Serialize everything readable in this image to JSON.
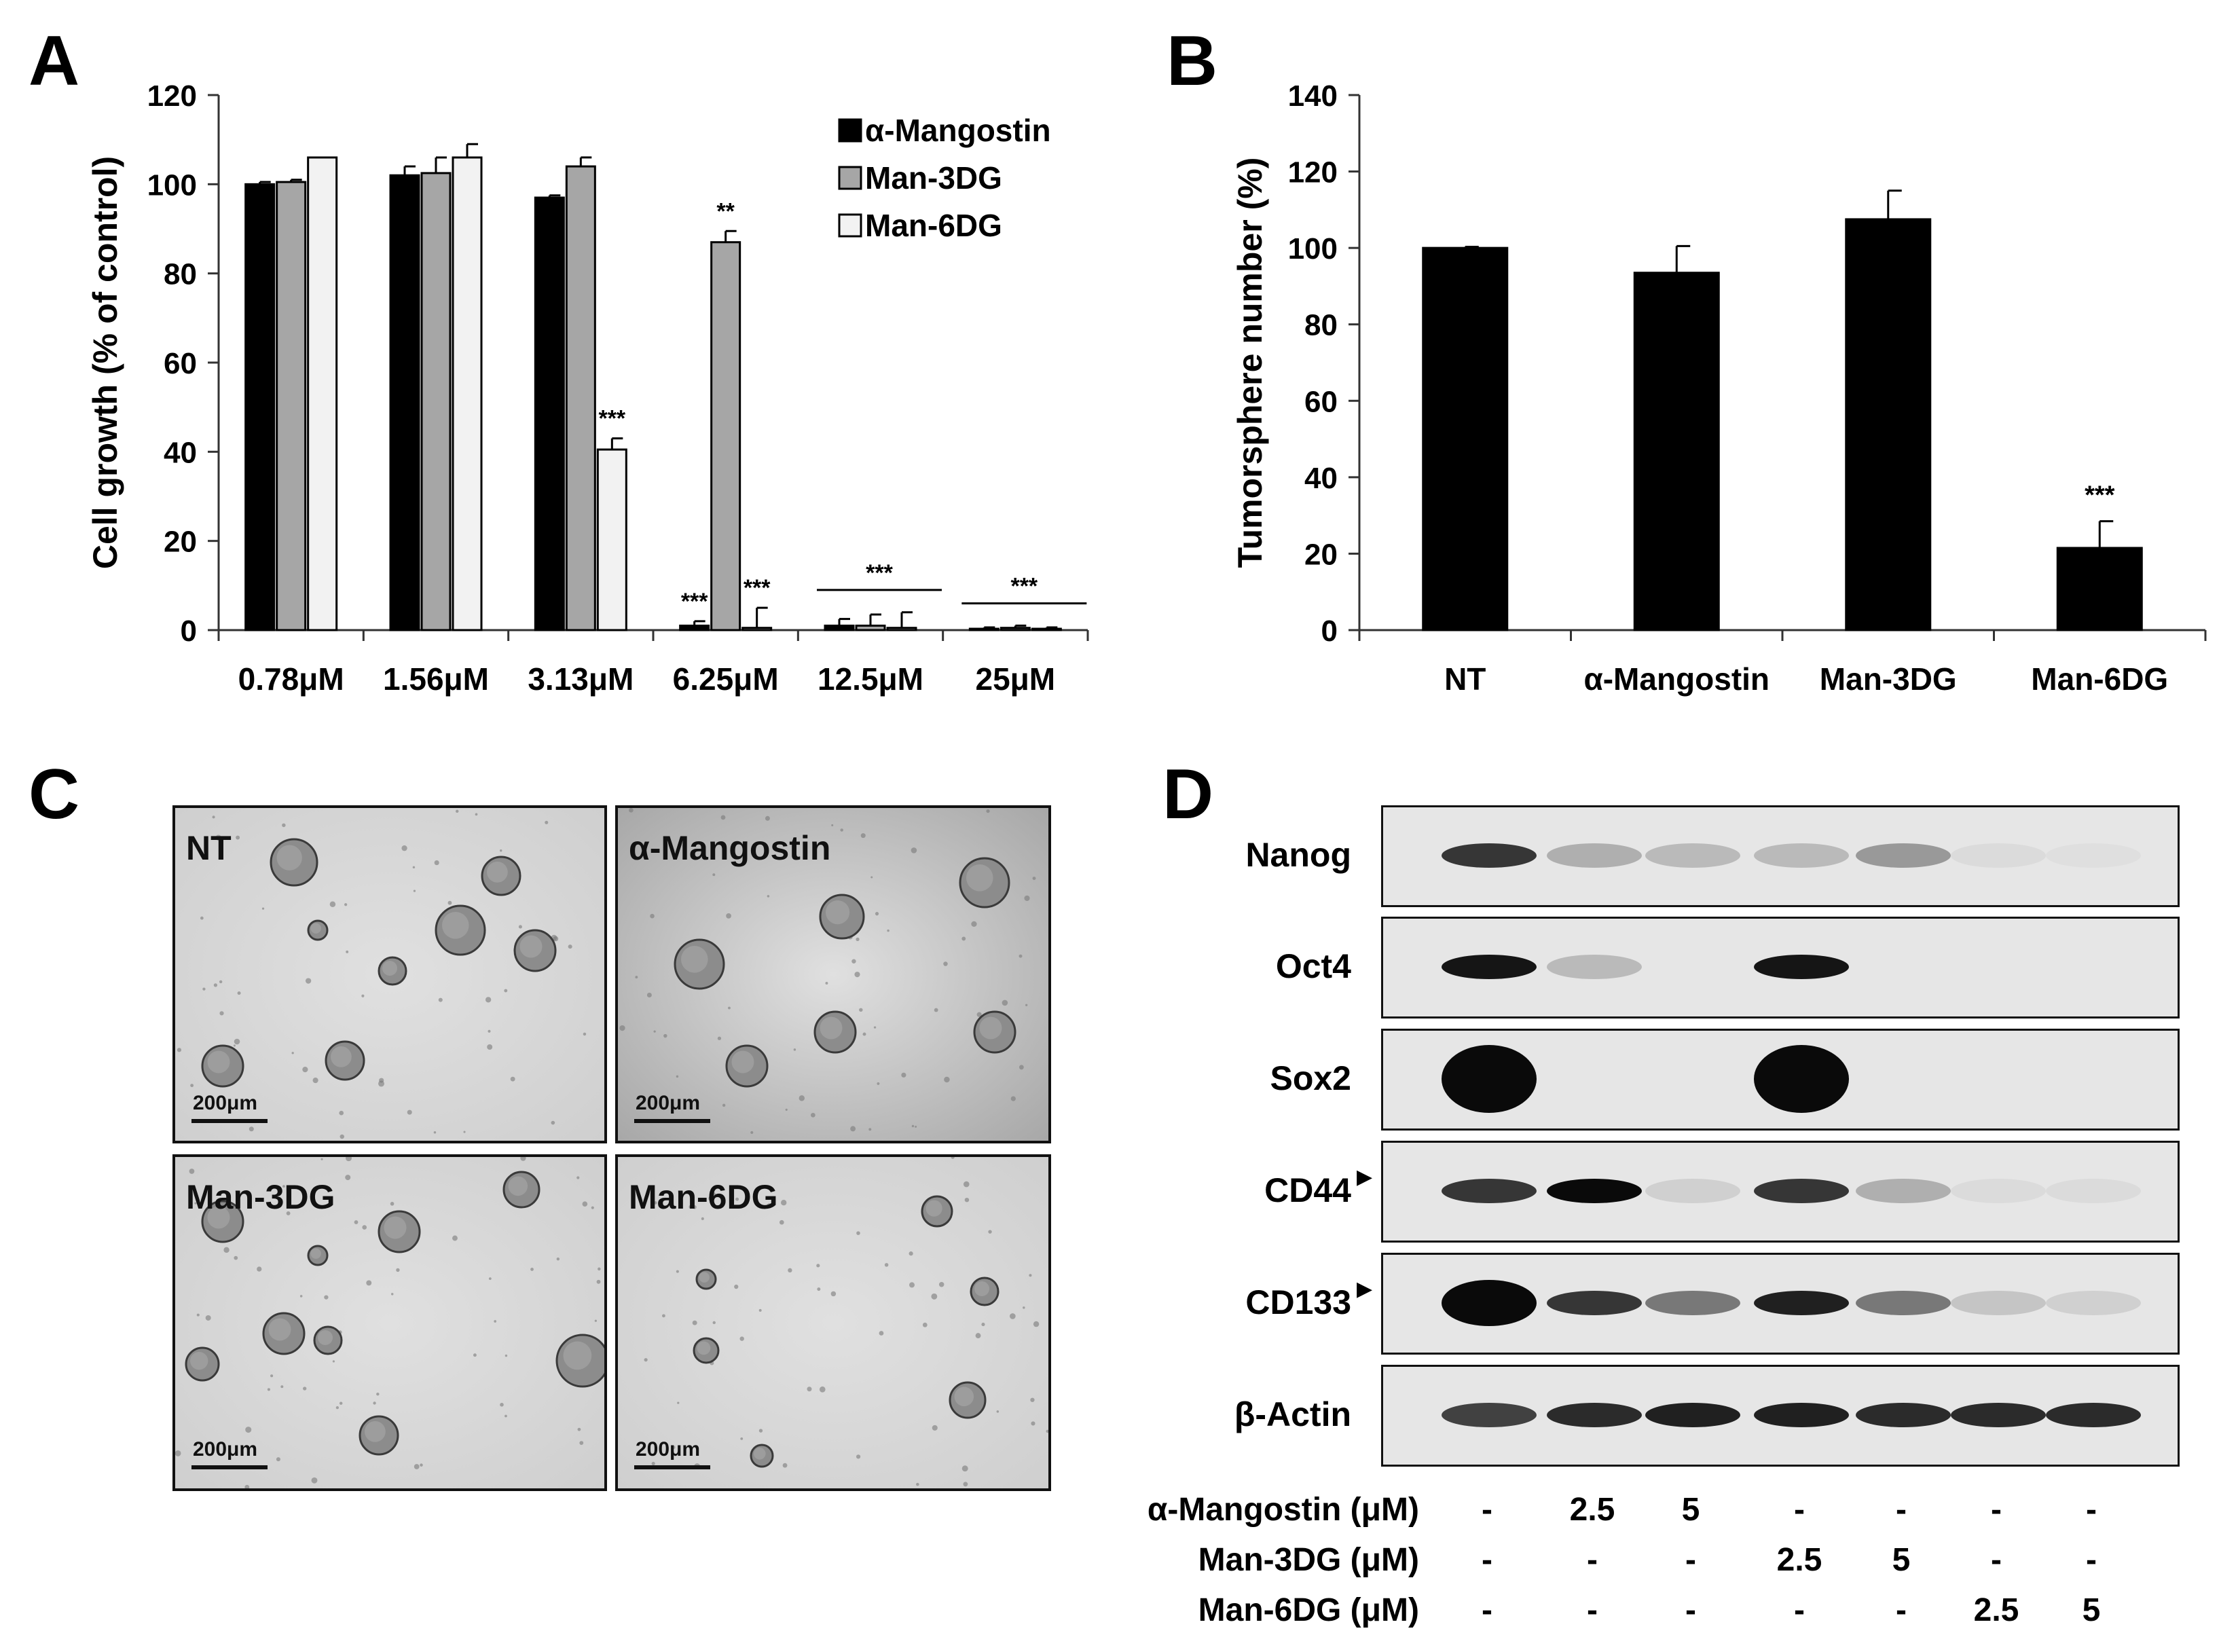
{
  "panels": {
    "a": "A",
    "b": "B",
    "c": "C",
    "d": "D"
  },
  "chart_data": [
    {
      "type": "bar",
      "panel": "A",
      "title": "",
      "xlabel": "",
      "ylabel": "Cell growth (% of control)",
      "ylim": [
        0,
        120
      ],
      "yticks": [
        "0",
        "20",
        "40",
        "60",
        "80",
        "100",
        "120"
      ],
      "categories": [
        "0.78μM",
        "1.56μM",
        "3.13μM",
        "6.25μM",
        "12.5μM",
        "25μM"
      ],
      "series": [
        {
          "name": "α-Mangostin",
          "color": "#000000",
          "values": [
            100,
            102,
            97,
            1,
            1,
            0.3
          ],
          "errors": [
            0.5,
            2,
            0.5,
            1,
            1.5,
            0.3
          ]
        },
        {
          "name": "Man-3DG",
          "color": "#a6a6a6",
          "values": [
            100.5,
            102.5,
            104,
            87,
            1,
            0.5
          ],
          "errors": [
            0.5,
            3.5,
            2,
            2.5,
            2.5,
            0.5
          ]
        },
        {
          "name": "Man-6DG",
          "color": "#f2f2f2",
          "values": [
            106,
            106,
            40.5,
            0.5,
            0.5,
            0.3
          ],
          "errors": [
            0,
            3,
            2.5,
            4.5,
            3.5,
            0.3
          ]
        }
      ],
      "annotations": [
        {
          "category": "3.13μM",
          "series": "Man-6DG",
          "text": "***"
        },
        {
          "category": "6.25μM",
          "series": "α-Mangostin",
          "text": "***"
        },
        {
          "category": "6.25μM",
          "series": "Man-3DG",
          "text": "**"
        },
        {
          "category": "6.25μM",
          "series": "Man-6DG",
          "text": "***"
        },
        {
          "category": "12.5μM",
          "series": "group",
          "text": "***"
        },
        {
          "category": "25μM",
          "series": "group",
          "text": "***"
        }
      ],
      "legend_position": "top-right",
      "grid": false
    },
    {
      "type": "bar",
      "panel": "B",
      "title": "",
      "xlabel": "",
      "ylabel": "Tumorsphere number (%)",
      "ylim": [
        0,
        140
      ],
      "yticks": [
        "0",
        "20",
        "40",
        "60",
        "80",
        "100",
        "120",
        "140"
      ],
      "categories": [
        "NT",
        "α-Mangostin",
        "Man-3DG",
        "Man-6DG"
      ],
      "values": [
        100,
        93.5,
        107.5,
        21.5
      ],
      "errors": [
        0.3,
        7,
        7.5,
        7
      ],
      "color": "#000000",
      "annotations": [
        {
          "category": "Man-6DG",
          "text": "***"
        }
      ],
      "grid": false
    }
  ],
  "micrographs": [
    {
      "label": "NT",
      "scale": "200μm"
    },
    {
      "label": "α-Mangostin",
      "scale": "200μm"
    },
    {
      "label": "Man-3DG",
      "scale": "200μm"
    },
    {
      "label": "Man-6DG",
      "scale": "200μm"
    }
  ],
  "western_blot": {
    "rows": [
      {
        "label": "Nanog",
        "marker": false,
        "intensity": [
          0.8,
          0.25,
          0.2,
          0.2,
          0.35,
          0.05,
          0.03
        ]
      },
      {
        "label": "Oct4",
        "marker": false,
        "intensity": [
          0.95,
          0.2,
          0.0,
          0.95,
          0.0,
          0.0,
          0.0
        ]
      },
      {
        "label": "Sox2",
        "marker": false,
        "intensity": [
          1.0,
          0.0,
          0.0,
          1.0,
          0.0,
          0.0,
          0.0
        ]
      },
      {
        "label": "CD44",
        "marker": true,
        "intensity": [
          0.8,
          1.0,
          0.1,
          0.8,
          0.25,
          0.05,
          0.05
        ]
      },
      {
        "label": "CD133",
        "marker": true,
        "intensity": [
          1.0,
          0.8,
          0.5,
          0.9,
          0.5,
          0.15,
          0.1
        ]
      },
      {
        "label": "β-Actin",
        "marker": false,
        "intensity": [
          0.75,
          0.85,
          0.9,
          0.9,
          0.85,
          0.85,
          0.85
        ]
      }
    ],
    "marker_symbol": "▶",
    "treatments": [
      {
        "label": "α-Mangostin (μM)",
        "values": [
          "-",
          "2.5",
          "5",
          "-",
          "-",
          "-",
          "-"
        ]
      },
      {
        "label": "Man-3DG (μM)",
        "values": [
          "-",
          "-",
          "-",
          "2.5",
          "5",
          "-",
          "-"
        ]
      },
      {
        "label": "Man-6DG (μM)",
        "values": [
          "-",
          "-",
          "-",
          "-",
          "-",
          "2.5",
          "5"
        ]
      }
    ]
  }
}
